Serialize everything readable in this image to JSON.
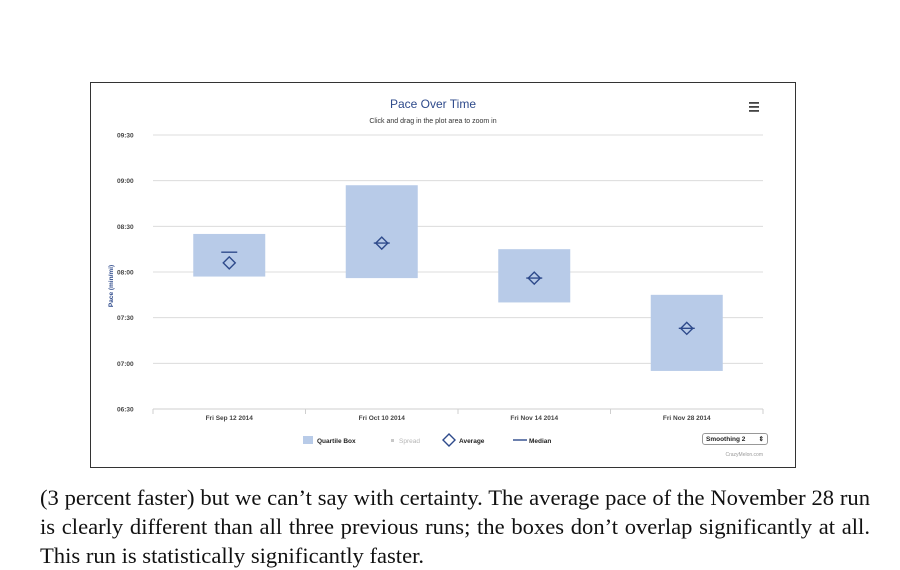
{
  "chart_data": {
    "type": "box",
    "title": "Pace Over Time",
    "subtitle": "Click and drag in the plot area to zoom in",
    "ylabel": "Pace (min/mi)",
    "xlabel": "",
    "ylim": [
      "06:30",
      "09:30"
    ],
    "y_ticks": [
      "09:30",
      "09:00",
      "08:30",
      "08:00",
      "07:30",
      "07:00",
      "06:30"
    ],
    "categories": [
      "Fri Sep 12 2014",
      "Fri Oct 10 2014",
      "Fri Nov 14 2014",
      "Fri Nov 28 2014"
    ],
    "series": [
      {
        "name": "Quartile Box",
        "q3": [
          "08:25",
          "08:57",
          "08:15",
          "07:45"
        ],
        "q1": [
          "07:57",
          "07:56",
          "07:40",
          "06:55"
        ]
      },
      {
        "name": "Average",
        "values": [
          "08:06",
          "08:19",
          "07:56",
          "07:23"
        ]
      },
      {
        "name": "Median",
        "values": [
          "08:13",
          "08:19",
          "07:56",
          "07:23"
        ]
      }
    ],
    "legend": [
      "Quartile Box",
      "Spread",
      "Average",
      "Median"
    ],
    "legend_position": "bottom",
    "grid": true,
    "colors": {
      "box": "#b8cbe8",
      "marker": "#2e4a8b",
      "title": "#2e4a8b",
      "grid": "#dcdcdc",
      "spread_legend": "#c8c8c8"
    }
  },
  "controls": {
    "menu_icon": "hamburger-menu-icon",
    "smoothing_label": "Smoothing 2"
  },
  "credit": "CrazyMelon.com",
  "caption": "(3 percent faster) but we can’t say with certainty. The average pace of the November 28 run is clearly different than all three previous runs; the boxes don’t overlap significantly at all. This run is statistically significantly faster."
}
